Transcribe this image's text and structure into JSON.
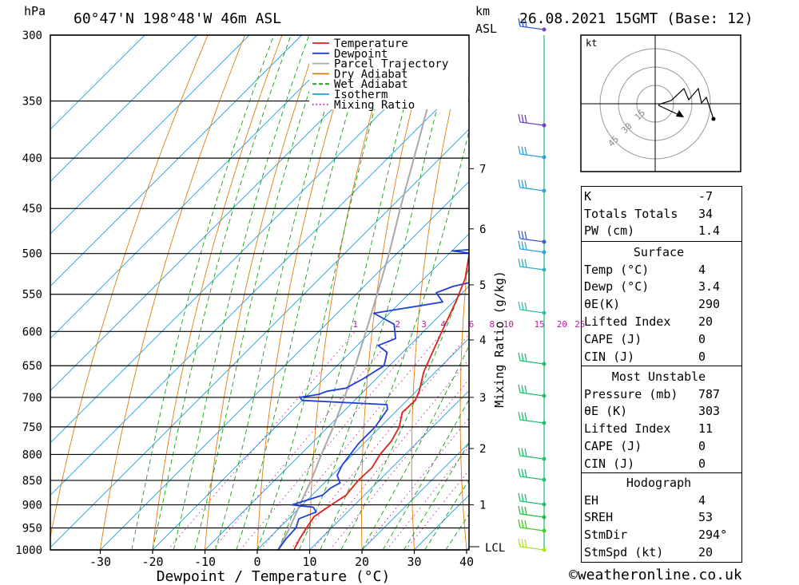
{
  "header": {
    "location": "60°47'N  198°48'W  46m  ASL",
    "date": "26.08.2021  15GMT  (Base: 12)",
    "hpa_label": "hPa",
    "km_label": "km",
    "asl_label": "ASL"
  },
  "chart_data": {
    "type": "line",
    "title": "60°47'N  198°48'W  46m  ASL",
    "xlabel": "Dewpoint / Temperature (°C)",
    "ylabel": "hPa",
    "xlim": [
      -40,
      40
    ],
    "ylim": [
      1000,
      300
    ],
    "yscale": "log",
    "grid": true,
    "x_ticks": [
      "-30",
      "-20",
      "-10",
      "0",
      "10",
      "20",
      "30",
      "40"
    ],
    "y_ticks": [
      "300",
      "350",
      "400",
      "450",
      "500",
      "550",
      "600",
      "650",
      "700",
      "750",
      "800",
      "850",
      "900",
      "950",
      "1000"
    ],
    "km_ticks": [
      {
        "label": "1",
        "p": 900
      },
      {
        "label": "2",
        "p": 789
      },
      {
        "label": "3",
        "p": 700
      },
      {
        "label": "4",
        "p": 612
      },
      {
        "label": "5",
        "p": 538
      },
      {
        "label": "6",
        "p": 472
      },
      {
        "label": "7",
        "p": 410
      }
    ],
    "lcl_label": "LCL",
    "mixing_ratio_axis": "Mixing Ratio (g/kg)",
    "mixing_ratio_labels": [
      "1",
      "2",
      "3",
      "4",
      "6",
      "8",
      "10",
      "15",
      "20",
      "25"
    ],
    "legend": {
      "placement": "top",
      "entries": [
        {
          "name": "Temperature",
          "color": "#e0211a"
        },
        {
          "name": "Dewpoint",
          "color": "#1f3fd6"
        },
        {
          "name": "Parcel Trajectory",
          "color": "#a8a8a8"
        },
        {
          "name": "Dry Adiabat",
          "color": "#e07d10"
        },
        {
          "name": "Wet Adiabat",
          "color": "#12a012"
        },
        {
          "name": "Isotherm",
          "color": "#1c9ee0"
        },
        {
          "name": "Mixing Ratio",
          "color": "#c0189c"
        }
      ]
    },
    "series": [
      {
        "name": "Temperature",
        "color": "#e0211a",
        "points": [
          [
            1000,
            7
          ],
          [
            975,
            6
          ],
          [
            950,
            5.2
          ],
          [
            925,
            4.5
          ],
          [
            900,
            5.5
          ],
          [
            880,
            6.5
          ],
          [
            850,
            6
          ],
          [
            825,
            6.2
          ],
          [
            800,
            5.2
          ],
          [
            775,
            4.8
          ],
          [
            750,
            3.6
          ],
          [
            725,
            1.4
          ],
          [
            705,
            1.6
          ],
          [
            690,
            0.6
          ],
          [
            660,
            -2.2
          ],
          [
            640,
            -3.6
          ],
          [
            600,
            -6.5
          ],
          [
            560,
            -9.5
          ],
          [
            530,
            -12.2
          ],
          [
            505,
            -15.5
          ],
          [
            495,
            -15.6
          ],
          [
            475,
            -15.7
          ],
          [
            460,
            -18.5
          ],
          [
            440,
            -20.6
          ],
          [
            420,
            -23.8
          ],
          [
            400,
            -27
          ],
          [
            370,
            -31
          ],
          [
            350,
            -34.5
          ],
          [
            320,
            -38.5
          ],
          [
            300,
            -41
          ]
        ]
      },
      {
        "name": "Dewpoint",
        "color": "#1f3fd6",
        "points": [
          [
            1000,
            4
          ],
          [
            975,
            3.4
          ],
          [
            950,
            3.2
          ],
          [
            930,
            2
          ],
          [
            915,
            4
          ],
          [
            905,
            2.5
          ],
          [
            900,
            -2
          ],
          [
            895,
            -1
          ],
          [
            880,
            2
          ],
          [
            865,
            2.2
          ],
          [
            855,
            3
          ],
          [
            840,
            1
          ],
          [
            820,
            0
          ],
          [
            800,
            -0.5
          ],
          [
            780,
            -1
          ],
          [
            750,
            -1
          ],
          [
            735,
            -1.5
          ],
          [
            720,
            -2
          ],
          [
            712,
            -3
          ],
          [
            705,
            -20
          ],
          [
            700,
            -21
          ],
          [
            695,
            -18
          ],
          [
            690,
            -17
          ],
          [
            685,
            -14
          ],
          [
            670,
            -12.5
          ],
          [
            650,
            -11
          ],
          [
            630,
            -13
          ],
          [
            620,
            -16
          ],
          [
            610,
            -14
          ],
          [
            590,
            -17
          ],
          [
            575,
            -23
          ],
          [
            560,
            -12
          ],
          [
            548,
            -15
          ],
          [
            540,
            -13
          ],
          [
            530,
            -8
          ],
          [
            515,
            -11
          ],
          [
            505,
            -8
          ],
          [
            497,
            -20
          ],
          [
            492,
            -9
          ],
          [
            480,
            -7
          ],
          [
            470,
            -7.5
          ],
          [
            455,
            -11
          ],
          [
            440,
            -14
          ],
          [
            430,
            -14
          ],
          [
            410,
            -15
          ],
          [
            395,
            -15
          ],
          [
            380,
            -17
          ],
          [
            360,
            -19
          ],
          [
            340,
            -22
          ],
          [
            320,
            -26
          ],
          [
            300,
            -30
          ]
        ]
      },
      {
        "name": "Parcel Trajectory",
        "color": "#a8a8a8",
        "points": [
          [
            1000,
            4
          ],
          [
            950,
            2
          ],
          [
            900,
            -0.5
          ],
          [
            850,
            -3
          ],
          [
            800,
            -6
          ],
          [
            750,
            -9
          ],
          [
            700,
            -12.5
          ],
          [
            650,
            -16.5
          ],
          [
            600,
            -21
          ],
          [
            550,
            -26
          ],
          [
            500,
            -31.5
          ],
          [
            450,
            -38
          ],
          [
            400,
            -45
          ],
          [
            350,
            -53
          ],
          [
            320,
            -58
          ],
          [
            305,
            -61
          ]
        ]
      }
    ]
  },
  "hodograph": {
    "unit": "kt",
    "ring_labels": [
      "15",
      "30",
      "45"
    ]
  },
  "indices": {
    "top": [
      {
        "k": "K",
        "v": "-7"
      },
      {
        "k": "Totals Totals",
        "v": "34"
      },
      {
        "k": "PW (cm)",
        "v": "1.4"
      }
    ],
    "surface": {
      "title": "Surface",
      "rows": [
        {
          "k": "Temp (°C)",
          "v": "4"
        },
        {
          "k": "Dewp (°C)",
          "v": "3.4"
        },
        {
          "k": "θE(K)",
          "v": "290"
        },
        {
          "k": "Lifted Index",
          "v": "20"
        },
        {
          "k": "CAPE (J)",
          "v": "0"
        },
        {
          "k": "CIN (J)",
          "v": "0"
        }
      ]
    },
    "most_unstable": {
      "title": "Most Unstable",
      "rows": [
        {
          "k": "Pressure (mb)",
          "v": "787"
        },
        {
          "k": "θE (K)",
          "v": "303"
        },
        {
          "k": "Lifted Index",
          "v": "11"
        },
        {
          "k": "CAPE (J)",
          "v": "0"
        },
        {
          "k": "CIN (J)",
          "v": "0"
        }
      ]
    },
    "hodograph_box": {
      "title": "Hodograph",
      "rows": [
        {
          "k": "EH",
          "v": "4"
        },
        {
          "k": "SREH",
          "v": "53"
        },
        {
          "k": "StmDir",
          "v": "294°"
        },
        {
          "k": "StmSpd (kt)",
          "v": "20"
        }
      ]
    }
  },
  "footer": {
    "copyright": "©weatheronline.co.uk"
  }
}
